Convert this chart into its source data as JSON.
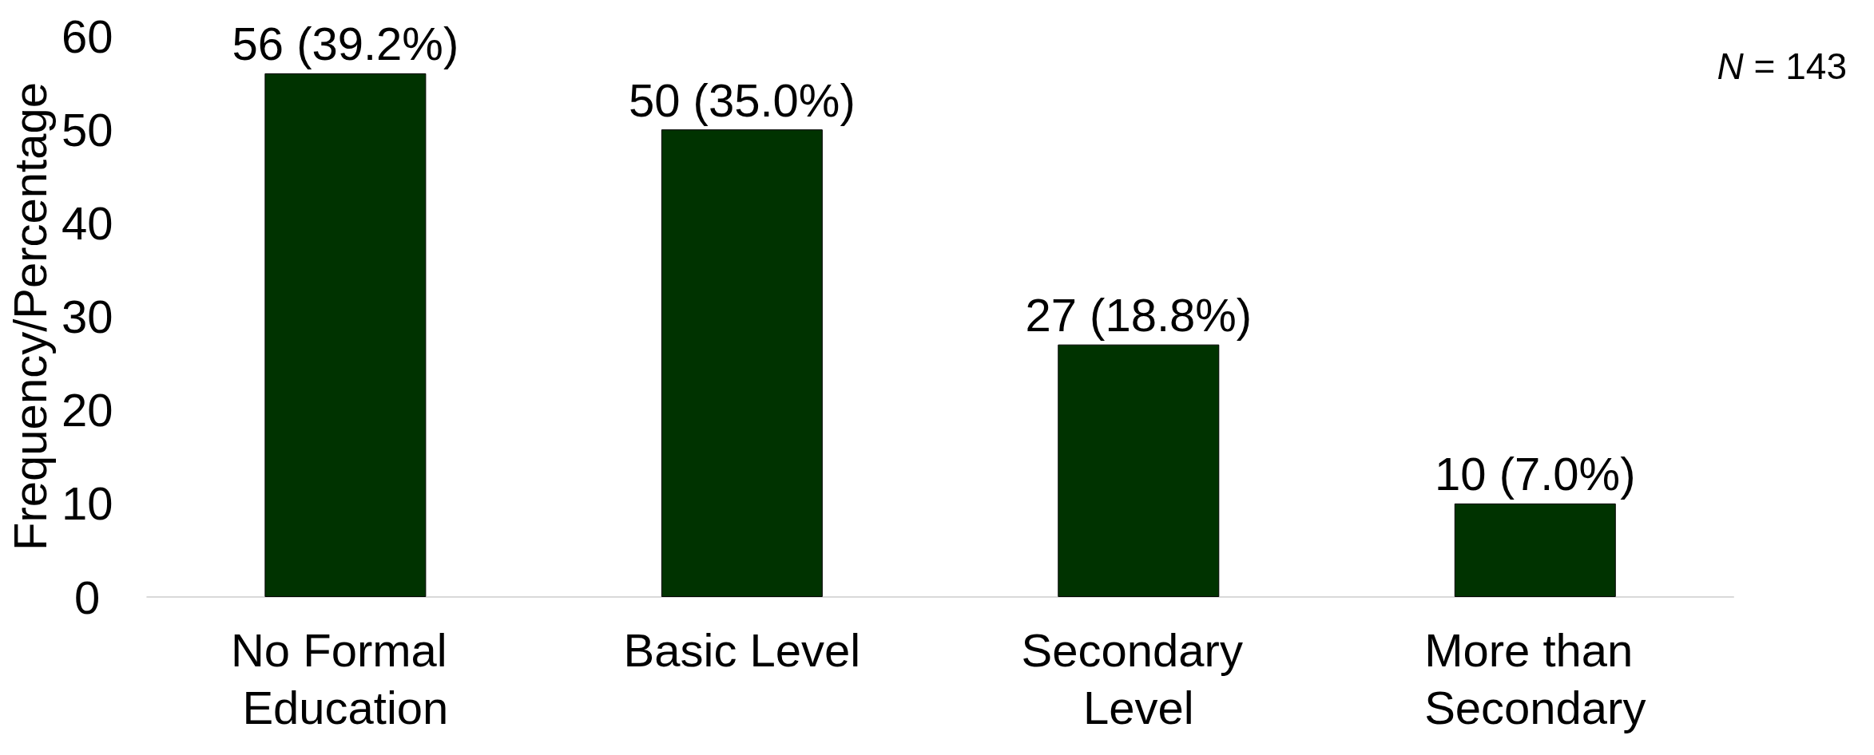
{
  "chart_data": {
    "type": "bar",
    "ylabel": "Frequency/Percentage",
    "categories": [
      "No Formal Education",
      "Basic Level",
      "Secondary Level",
      "More than Secondary"
    ],
    "values": [
      56,
      50,
      27,
      10
    ],
    "value_labels": [
      "56 (39.2%)",
      "50 (35.0%)",
      "27 (18.8%)",
      "10 (7.0%)"
    ],
    "color": "#003300",
    "ylim": [
      0,
      60
    ],
    "yticks": [
      0,
      10,
      20,
      30,
      40,
      50,
      60
    ],
    "grid": false,
    "annotations": [
      "N = 143"
    ]
  }
}
